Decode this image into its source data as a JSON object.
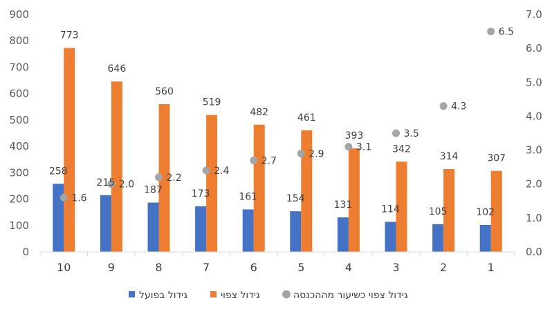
{
  "chart_data": {
    "type": "bar",
    "categories": [
      "10",
      "9",
      "8",
      "7",
      "6",
      "5",
      "4",
      "3",
      "2",
      "1"
    ],
    "series": [
      {
        "name": "גידול בפועל",
        "axis": "left",
        "color": "#4472c4",
        "values": [
          258,
          215,
          187,
          173,
          161,
          154,
          131,
          114,
          105,
          102
        ]
      },
      {
        "name": "גידול צפוי",
        "axis": "left",
        "color": "#ed7d31",
        "values": [
          773,
          646,
          560,
          519,
          482,
          461,
          393,
          342,
          314,
          307
        ]
      },
      {
        "name": "גידול צפוי כשיעור מההכנסה",
        "axis": "right",
        "type": "scatter",
        "color": "#a5a5a5",
        "values": [
          1.6,
          2.0,
          2.2,
          2.4,
          2.7,
          2.9,
          3.1,
          3.5,
          4.3,
          6.5
        ]
      }
    ],
    "y_left": {
      "range": [
        0,
        900
      ],
      "ticks": [
        "0",
        "100",
        "200",
        "300",
        "400",
        "500",
        "600",
        "700",
        "800",
        "900"
      ]
    },
    "y_right": {
      "range": [
        0,
        7
      ],
      "ticks": [
        "0.0",
        "1.0",
        "2.0",
        "3.0",
        "4.0",
        "5.0",
        "6.0",
        "7.0"
      ]
    },
    "grid": false,
    "legend_position": "bottom"
  }
}
